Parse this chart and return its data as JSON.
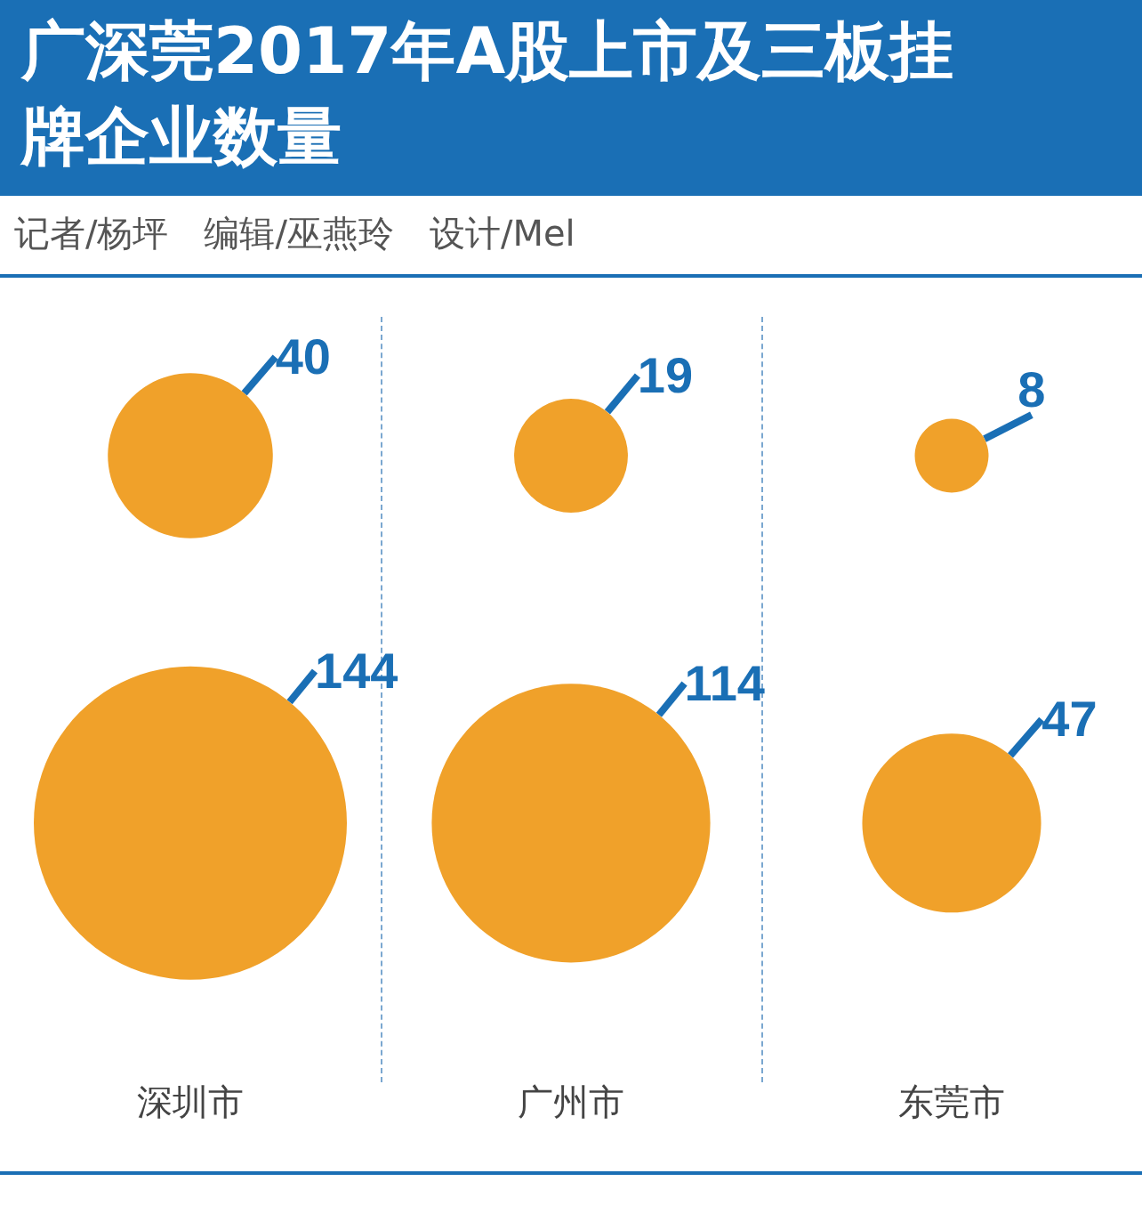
{
  "chart_data": {
    "type": "other",
    "title": "广深莞2017年A股上市及三板挂牌企业数量",
    "subtitle": "记者/杨坪　编辑/巫燕玲　设计/Mel",
    "categories": [
      "深圳市",
      "广州市",
      "东莞市"
    ],
    "series": [
      {
        "color": "#f0a12a",
        "values": [
          40,
          19,
          8
        ]
      },
      {
        "color": "#f0a12a",
        "values": [
          144,
          114,
          47
        ]
      }
    ],
    "data_labels": true
  }
}
